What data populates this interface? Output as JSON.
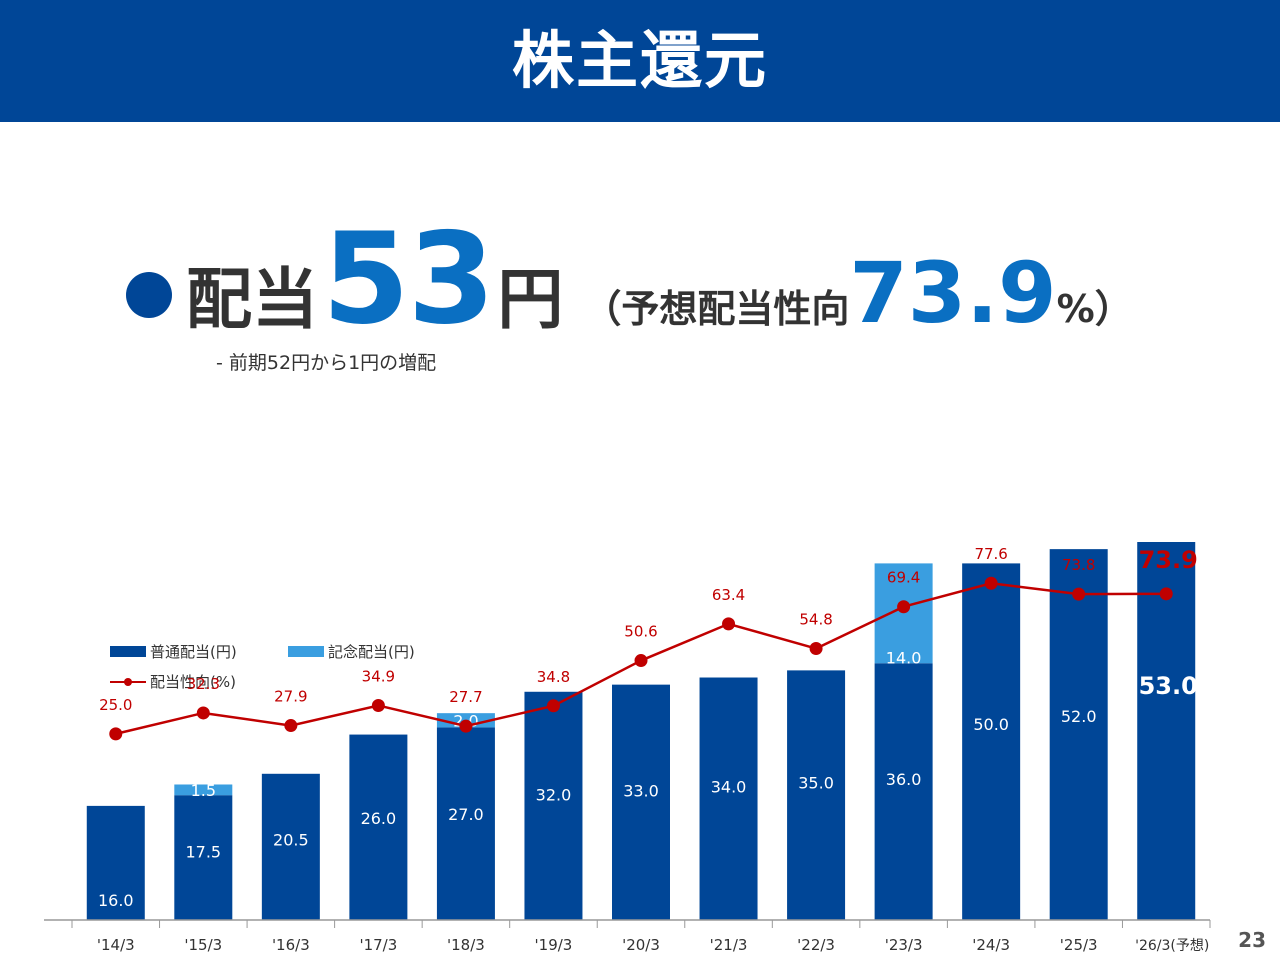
{
  "header": {
    "title": "株主還元"
  },
  "headline": {
    "label": "配当",
    "amount": "53",
    "unit": "円",
    "ratio_prefix": "（予想配当性向",
    "ratio_value": "73.9",
    "ratio_suffix": "%）",
    "note": "- 前期52円から1円の増配"
  },
  "legend": {
    "ordinary": "普通配当(円)",
    "commemorative": "記念配当(円)",
    "payout": "配当性向(%)"
  },
  "colors": {
    "ordinary": "#004697",
    "commemorative": "#3a9ee0",
    "payout": "#c00000",
    "axis": "#999999"
  },
  "chart_data": {
    "type": "bar",
    "stacked": true,
    "categories": [
      "'14/3",
      "'15/3",
      "'16/3",
      "'17/3",
      "'18/3",
      "'19/3",
      "'20/3",
      "'21/3",
      "'22/3",
      "'23/3",
      "'24/3",
      "'25/3",
      "'26/3(予想)"
    ],
    "series": [
      {
        "name": "普通配当(円)",
        "values": [
          16.0,
          17.5,
          20.5,
          26.0,
          27.0,
          32.0,
          33.0,
          34.0,
          35.0,
          36.0,
          50.0,
          52.0,
          53.0
        ],
        "labels": [
          "16.0",
          "17.5",
          "20.5",
          "26.0",
          "27.0",
          "32.0",
          "33.0",
          "34.0",
          "35.0",
          "36.0",
          "50.0",
          "52.0",
          "53.0"
        ]
      },
      {
        "name": "記念配当(円)",
        "values": [
          0,
          1.5,
          0,
          0,
          2.0,
          0,
          0,
          0,
          0,
          14.0,
          0,
          0,
          0
        ],
        "labels": [
          "",
          "1.5",
          "",
          "",
          "2.0",
          "",
          "",
          "",
          "",
          "14.0",
          "",
          "",
          ""
        ]
      },
      {
        "name": "配当性向(%)",
        "type": "line",
        "values": [
          25.0,
          32.3,
          27.9,
          34.9,
          27.7,
          34.8,
          50.6,
          63.4,
          54.8,
          69.4,
          77.6,
          73.8,
          73.9
        ],
        "labels": [
          "25.0",
          "32.3",
          "27.9",
          "34.9",
          "27.7",
          "34.8",
          "50.6",
          "63.4",
          "54.8",
          "69.4",
          "77.6",
          "73.8",
          "73.9"
        ]
      }
    ],
    "ylim_dividend": [
      0,
      53
    ],
    "ylim_payout": [
      -40,
      92
    ]
  },
  "page_number": "23"
}
